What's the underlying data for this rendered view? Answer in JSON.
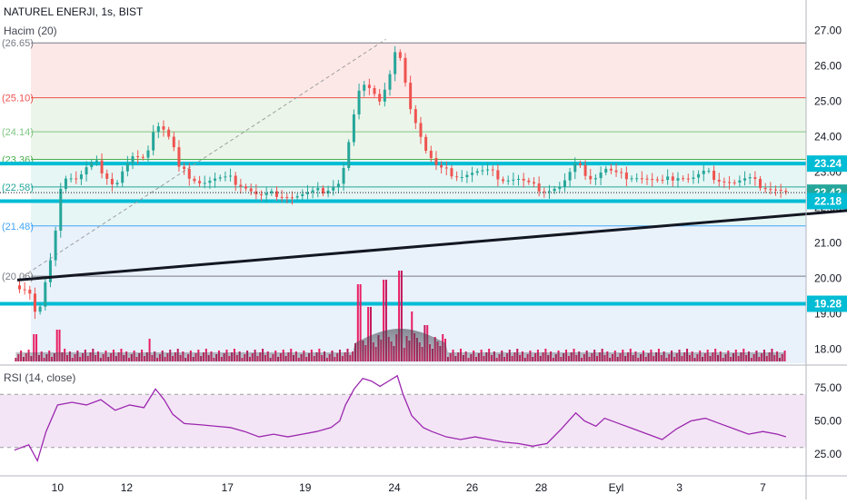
{
  "header": {
    "title": "NATUREL ENERJI, 1s, BIST",
    "volume_label": "Hacim (20)",
    "rsi_label": "RSI (14, close)"
  },
  "colors": {
    "up": "#26a69a",
    "down": "#ef5350",
    "volume_up": "#e91e63",
    "volume_down": "#c2185b",
    "hline": "#00bcd4",
    "trendline": "#131722",
    "rsi_line": "#9c27b0",
    "rsi_band": "#f3e5f5",
    "price_label_bg": "#00bcd4",
    "axis_text": "#131722"
  },
  "chart_data": [
    {
      "type": "candlestick",
      "title": "NATUREL ENERJI, 1s, BIST",
      "x_ticks": [
        "10",
        "12",
        "17",
        "19",
        "24",
        "26",
        "28",
        "Eyl",
        "3",
        "7"
      ],
      "y_ticks": [
        18.0,
        19.0,
        20.0,
        21.0,
        22.0,
        23.0,
        24.0,
        25.0,
        26.0,
        27.0
      ],
      "ylim": [
        17.6,
        27.4
      ],
      "price_labels": [
        {
          "value": "23.24",
          "kind": "horizontal-line"
        },
        {
          "value": "22.42",
          "kind": "last-price"
        },
        {
          "value": "22.18",
          "kind": "horizontal-line"
        },
        {
          "value": "19.28",
          "kind": "horizontal-line"
        }
      ],
      "fib_levels": [
        {
          "value": 26.65,
          "label": "(26.65)"
        },
        {
          "value": 25.1,
          "label": "(25.10)"
        },
        {
          "value": 24.14,
          "label": "(24.14)"
        },
        {
          "value": 23.36,
          "label": "(23.36)"
        },
        {
          "value": 22.58,
          "label": "(22.58)"
        },
        {
          "value": 21.48,
          "label": "(21.48)"
        },
        {
          "value": 20.06,
          "label": "(20.06)"
        }
      ],
      "horizontal_lines": [
        23.24,
        22.18,
        19.28
      ],
      "trendline": [
        [
          8.6,
          19.95
        ],
        [
          47.8,
          22.62
        ]
      ],
      "close_path": [
        [
          8.5,
          19.8
        ],
        [
          9.0,
          19.7
        ],
        [
          9.3,
          18.8
        ],
        [
          9.5,
          19.6
        ],
        [
          9.8,
          20.6
        ],
        [
          10.0,
          21.6
        ],
        [
          10.1,
          22.6
        ],
        [
          10.3,
          22.9
        ],
        [
          10.7,
          22.8
        ],
        [
          11.0,
          23.1
        ],
        [
          11.3,
          23.3
        ],
        [
          11.7,
          22.9
        ],
        [
          12.0,
          22.6
        ],
        [
          12.3,
          23.1
        ],
        [
          12.6,
          23.4
        ],
        [
          13.0,
          23.3
        ],
        [
          13.4,
          24.4
        ],
        [
          13.7,
          24.2
        ],
        [
          14.0,
          23.8
        ],
        [
          14.2,
          23.1
        ],
        [
          14.6,
          22.9
        ],
        [
          15.0,
          22.7
        ],
        [
          15.5,
          22.8
        ],
        [
          16.0,
          22.8
        ],
        [
          16.5,
          22.6
        ],
        [
          17.0,
          22.3
        ],
        [
          17.6,
          22.4
        ],
        [
          18.2,
          22.3
        ],
        [
          18.8,
          22.4
        ],
        [
          19.3,
          22.5
        ],
        [
          19.8,
          22.7
        ],
        [
          20.0,
          23.3
        ],
        [
          20.2,
          24.2
        ],
        [
          20.4,
          25.0
        ],
        [
          20.6,
          25.6
        ],
        [
          20.9,
          25.4
        ],
        [
          21.2,
          25.0
        ],
        [
          21.5,
          25.6
        ],
        [
          21.8,
          26.6
        ],
        [
          22.0,
          25.7
        ],
        [
          22.2,
          25.0
        ],
        [
          22.5,
          24.3
        ],
        [
          22.8,
          23.6
        ],
        [
          23.2,
          23.1
        ],
        [
          23.6,
          23.0
        ],
        [
          24.0,
          22.9
        ],
        [
          24.5,
          23.0
        ],
        [
          25.0,
          23.0
        ],
        [
          25.5,
          22.8
        ],
        [
          26.0,
          22.8
        ],
        [
          26.5,
          22.6
        ],
        [
          27.0,
          22.5
        ],
        [
          27.5,
          22.6
        ],
        [
          28.0,
          23.2
        ],
        [
          28.3,
          23.0
        ],
        [
          28.6,
          22.8
        ],
        [
          29.0,
          23.1
        ],
        [
          29.5,
          22.9
        ],
        [
          30.0,
          22.9
        ],
        [
          30.5,
          22.8
        ],
        [
          31.0,
          22.7
        ],
        [
          31.5,
          22.9
        ],
        [
          32.0,
          22.8
        ],
        [
          32.5,
          23.0
        ],
        [
          33.0,
          22.8
        ],
        [
          33.5,
          22.7
        ],
        [
          34.0,
          22.8
        ],
        [
          34.5,
          22.6
        ],
        [
          35.0,
          22.5
        ],
        [
          35.3,
          22.4
        ]
      ],
      "volume_spikes": [
        {
          "at": 9.2,
          "level": 0.3
        },
        {
          "at": 10.0,
          "level": 0.35
        },
        {
          "at": 13.2,
          "level": 0.25
        },
        {
          "at": 20.5,
          "level": 0.85
        },
        {
          "at": 20.8,
          "level": 0.6
        },
        {
          "at": 21.4,
          "level": 0.9
        },
        {
          "at": 21.9,
          "level": 1.0
        },
        {
          "at": 22.3,
          "level": 0.55
        },
        {
          "at": 22.8,
          "level": 0.4
        }
      ]
    },
    {
      "type": "line",
      "title": "RSI (14, close)",
      "x_ticks": [
        "10",
        "12",
        "17",
        "19",
        "24",
        "26",
        "28",
        "Eyl",
        "3",
        "7"
      ],
      "y_ticks": [
        25.0,
        50.0,
        75.0
      ],
      "band": [
        30,
        70
      ],
      "ylim": [
        10,
        90
      ],
      "values": [
        [
          8.5,
          28
        ],
        [
          9.0,
          32
        ],
        [
          9.3,
          20
        ],
        [
          9.6,
          42
        ],
        [
          10.0,
          62
        ],
        [
          10.5,
          64
        ],
        [
          11.0,
          62
        ],
        [
          11.5,
          66
        ],
        [
          12.0,
          58
        ],
        [
          12.5,
          62
        ],
        [
          13.0,
          60
        ],
        [
          13.4,
          74
        ],
        [
          13.7,
          66
        ],
        [
          14.0,
          55
        ],
        [
          14.4,
          48
        ],
        [
          15.0,
          47
        ],
        [
          15.5,
          46
        ],
        [
          16.0,
          45
        ],
        [
          16.5,
          42
        ],
        [
          17.0,
          38
        ],
        [
          17.5,
          40
        ],
        [
          18.0,
          38
        ],
        [
          18.5,
          40
        ],
        [
          19.0,
          42
        ],
        [
          19.5,
          45
        ],
        [
          19.8,
          50
        ],
        [
          20.0,
          62
        ],
        [
          20.3,
          74
        ],
        [
          20.6,
          82
        ],
        [
          20.9,
          80
        ],
        [
          21.2,
          76
        ],
        [
          21.5,
          80
        ],
        [
          21.8,
          84
        ],
        [
          22.0,
          70
        ],
        [
          22.3,
          54
        ],
        [
          22.7,
          45
        ],
        [
          23.0,
          42
        ],
        [
          23.5,
          38
        ],
        [
          24.0,
          36
        ],
        [
          24.5,
          38
        ],
        [
          25.0,
          36
        ],
        [
          25.5,
          34
        ],
        [
          26.0,
          33
        ],
        [
          26.5,
          31
        ],
        [
          27.0,
          33
        ],
        [
          27.5,
          44
        ],
        [
          28.0,
          56
        ],
        [
          28.3,
          50
        ],
        [
          28.7,
          46
        ],
        [
          29.0,
          52
        ],
        [
          29.5,
          48
        ],
        [
          30.0,
          44
        ],
        [
          30.5,
          40
        ],
        [
          31.0,
          36
        ],
        [
          31.5,
          44
        ],
        [
          32.0,
          50
        ],
        [
          32.5,
          52
        ],
        [
          33.0,
          48
        ],
        [
          33.5,
          44
        ],
        [
          34.0,
          40
        ],
        [
          34.5,
          42
        ],
        [
          35.0,
          40
        ],
        [
          35.3,
          38
        ]
      ]
    }
  ]
}
